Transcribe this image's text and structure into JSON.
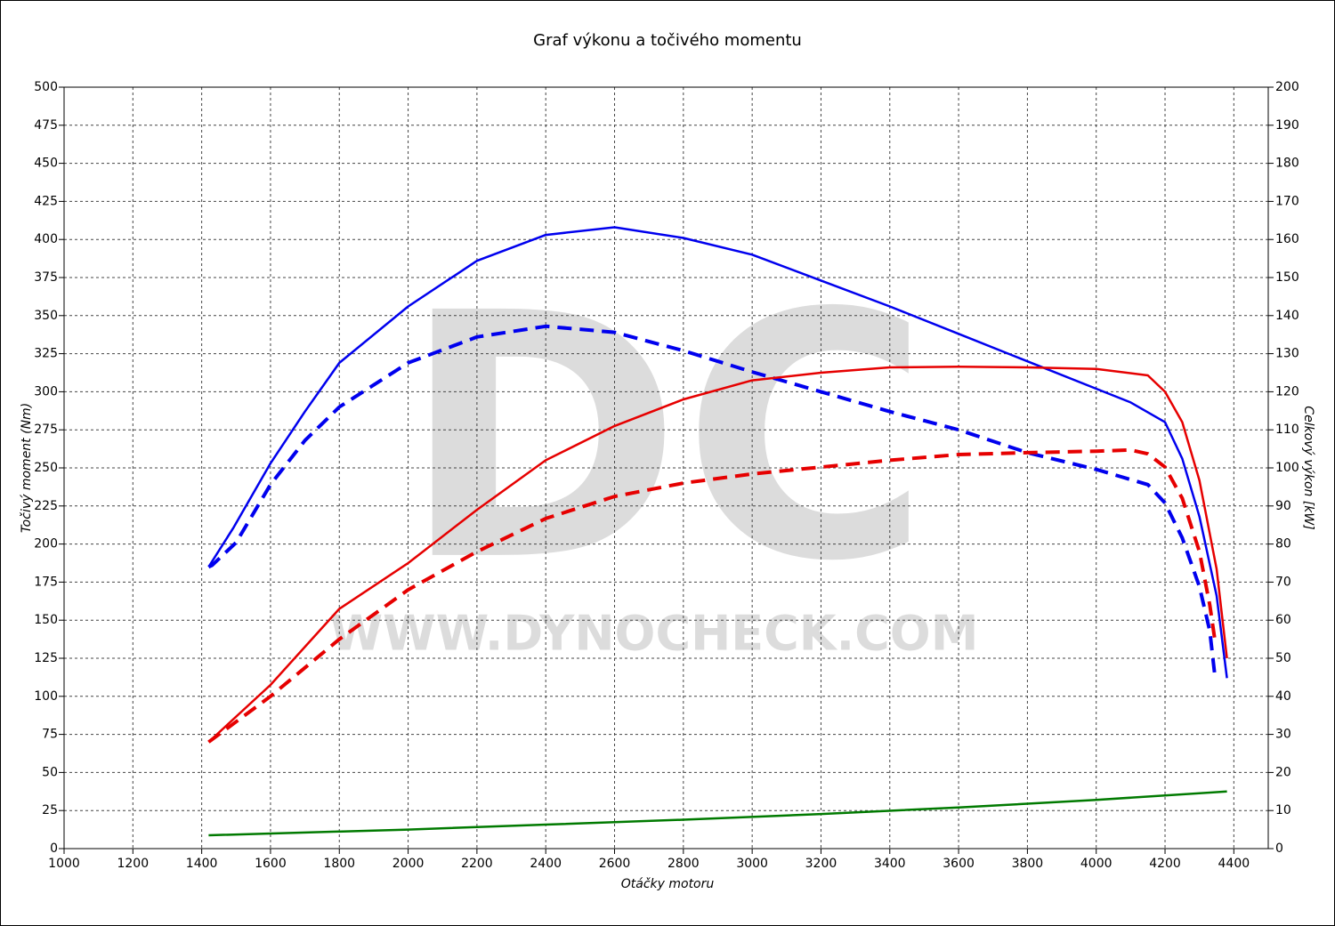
{
  "chart_data": {
    "type": "line",
    "title": "Graf výkonu a točivého momentu",
    "xlabel": "Otáčky motoru",
    "ylabel": "Točivý moment (Nm)",
    "y2label": "Celkový výkon [kW]",
    "watermark": {
      "logo": "DC",
      "url": "WWW.DYNOCHECK.COM"
    },
    "xlim": [
      1000,
      4500
    ],
    "xticks": [
      1000,
      1200,
      1400,
      1600,
      1800,
      2000,
      2200,
      2400,
      2600,
      2800,
      3000,
      3200,
      3400,
      3600,
      3800,
      4000,
      4200,
      4400
    ],
    "ylim": [
      0,
      500
    ],
    "yticks": [
      0,
      25,
      50,
      75,
      100,
      125,
      150,
      175,
      200,
      225,
      250,
      275,
      300,
      325,
      350,
      375,
      400,
      425,
      450,
      475,
      500
    ],
    "y2lim": [
      0,
      200
    ],
    "y2ticks": [
      0,
      10,
      20,
      30,
      40,
      50,
      60,
      70,
      80,
      90,
      100,
      110,
      120,
      130,
      140,
      150,
      160,
      170,
      180,
      190,
      200
    ],
    "grid": true,
    "series": [
      {
        "color": "#0000ee",
        "dashed": false,
        "axis": "y",
        "x": [
          1420,
          1493,
          1600,
          1700,
          1800,
          2000,
          2200,
          2400,
          2600,
          2800,
          3000,
          3200,
          3400,
          3600,
          3800,
          4000,
          4100,
          4200,
          4250,
          4300,
          4350,
          4380
        ],
        "values": [
          185,
          211,
          253,
          287,
          319,
          356,
          386,
          403,
          408,
          401,
          390,
          373,
          356,
          338,
          320,
          302,
          293,
          280,
          256,
          218,
          166,
          112
        ]
      },
      {
        "color": "#0000ee",
        "dashed": true,
        "axis": "y",
        "x": [
          1420,
          1430,
          1500,
          1600,
          1700,
          1800,
          2000,
          2200,
          2400,
          2600,
          2800,
          3000,
          3200,
          3400,
          3600,
          3800,
          4000,
          4150,
          4200,
          4250,
          4300,
          4330,
          4345
        ],
        "values": [
          185,
          186,
          201,
          239,
          268,
          290,
          319,
          336,
          343,
          339,
          327,
          313,
          300,
          287,
          275,
          260,
          249,
          239,
          227,
          204,
          172,
          143,
          113
        ]
      },
      {
        "color": "#e60000",
        "dashed": false,
        "axis": "y2",
        "x": [
          1420,
          1600,
          1800,
          2000,
          2200,
          2400,
          2600,
          2800,
          3000,
          3200,
          3400,
          3600,
          3800,
          4000,
          4150,
          4200,
          4250,
          4300,
          4350,
          4380
        ],
        "values": [
          28,
          43,
          63,
          75,
          89,
          102,
          111,
          118,
          123,
          125,
          126.4,
          126.6,
          126.4,
          126,
          124.3,
          120,
          112,
          96.7,
          73.4,
          50
        ]
      },
      {
        "color": "#e60000",
        "dashed": true,
        "axis": "y2",
        "x": [
          1420,
          1600,
          1800,
          2000,
          2200,
          2400,
          2600,
          2800,
          3000,
          3200,
          3400,
          3600,
          3800,
          4000,
          4100,
          4150,
          4200,
          4250,
          4300,
          4330,
          4345
        ],
        "values": [
          28,
          40,
          55,
          68,
          78,
          86.7,
          92.5,
          96,
          98.4,
          100.2,
          102,
          103.5,
          104,
          104.4,
          104.7,
          103.7,
          100.2,
          92,
          78,
          64,
          54.7
        ]
      },
      {
        "color": "#007a00",
        "dashed": false,
        "axis": "y2",
        "x": [
          1420,
          2000,
          2400,
          2800,
          3200,
          3600,
          4000,
          4380
        ],
        "values": [
          3.5,
          5,
          6.3,
          7.6,
          9.1,
          10.8,
          12.8,
          15
        ]
      }
    ]
  }
}
